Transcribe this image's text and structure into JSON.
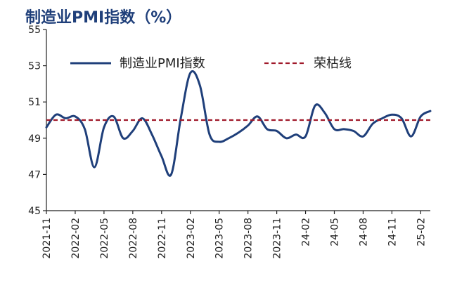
{
  "chart_data": {
    "type": "line",
    "title": "制造业PMI指数（%）",
    "xlabel": "",
    "ylabel": "",
    "ylim": [
      45,
      55
    ],
    "yticks": [
      45,
      47,
      49,
      51,
      53,
      55
    ],
    "grid": false,
    "legend_position": "top",
    "x": [
      "2021-11",
      "2021-12",
      "2022-01",
      "2022-02",
      "2022-03",
      "2022-04",
      "2022-05",
      "2022-06",
      "2022-07",
      "2022-08",
      "2022-09",
      "2022-10",
      "2022-11",
      "2022-12",
      "2023-01",
      "2023-02",
      "2023-03",
      "2023-04",
      "2023-05",
      "2023-06",
      "2023-07",
      "2023-08",
      "2023-09",
      "2023-10",
      "2023-11",
      "2023-12",
      "24-01",
      "24-02",
      "24-03",
      "24-04",
      "24-05",
      "24-06",
      "24-07",
      "24-08",
      "24-09",
      "24-10",
      "24-11",
      "24-12",
      "25-01",
      "25-02",
      "25-03"
    ],
    "xtick_labels": [
      "2021-11",
      "2022-02",
      "2022-05",
      "2022-08",
      "2022-11",
      "2023-02",
      "2023-05",
      "2023-08",
      "2023-11",
      "24-02",
      "24-05",
      "24-08",
      "24-11",
      "25-02"
    ],
    "series": [
      {
        "name": "制造业PMI指数",
        "color": "#1f3f7a",
        "style": "solid",
        "values": [
          49.6,
          50.3,
          50.1,
          50.2,
          49.5,
          47.4,
          49.6,
          50.2,
          49.0,
          49.4,
          50.1,
          49.2,
          48.0,
          47.0,
          50.1,
          52.6,
          51.9,
          49.2,
          48.8,
          49.0,
          49.3,
          49.7,
          50.2,
          49.5,
          49.4,
          49.0,
          49.2,
          49.1,
          50.8,
          50.4,
          49.5,
          49.5,
          49.4,
          49.1,
          49.8,
          50.1,
          50.3,
          50.1,
          49.1,
          50.2,
          50.5
        ]
      },
      {
        "name": "荣枯线",
        "color": "#a0192a",
        "style": "dashed",
        "values": [
          50,
          50,
          50,
          50,
          50,
          50,
          50,
          50,
          50,
          50,
          50,
          50,
          50,
          50,
          50,
          50,
          50,
          50,
          50,
          50,
          50,
          50,
          50,
          50,
          50,
          50,
          50,
          50,
          50,
          50,
          50,
          50,
          50,
          50,
          50,
          50,
          50,
          50,
          50,
          50,
          50
        ]
      }
    ]
  }
}
